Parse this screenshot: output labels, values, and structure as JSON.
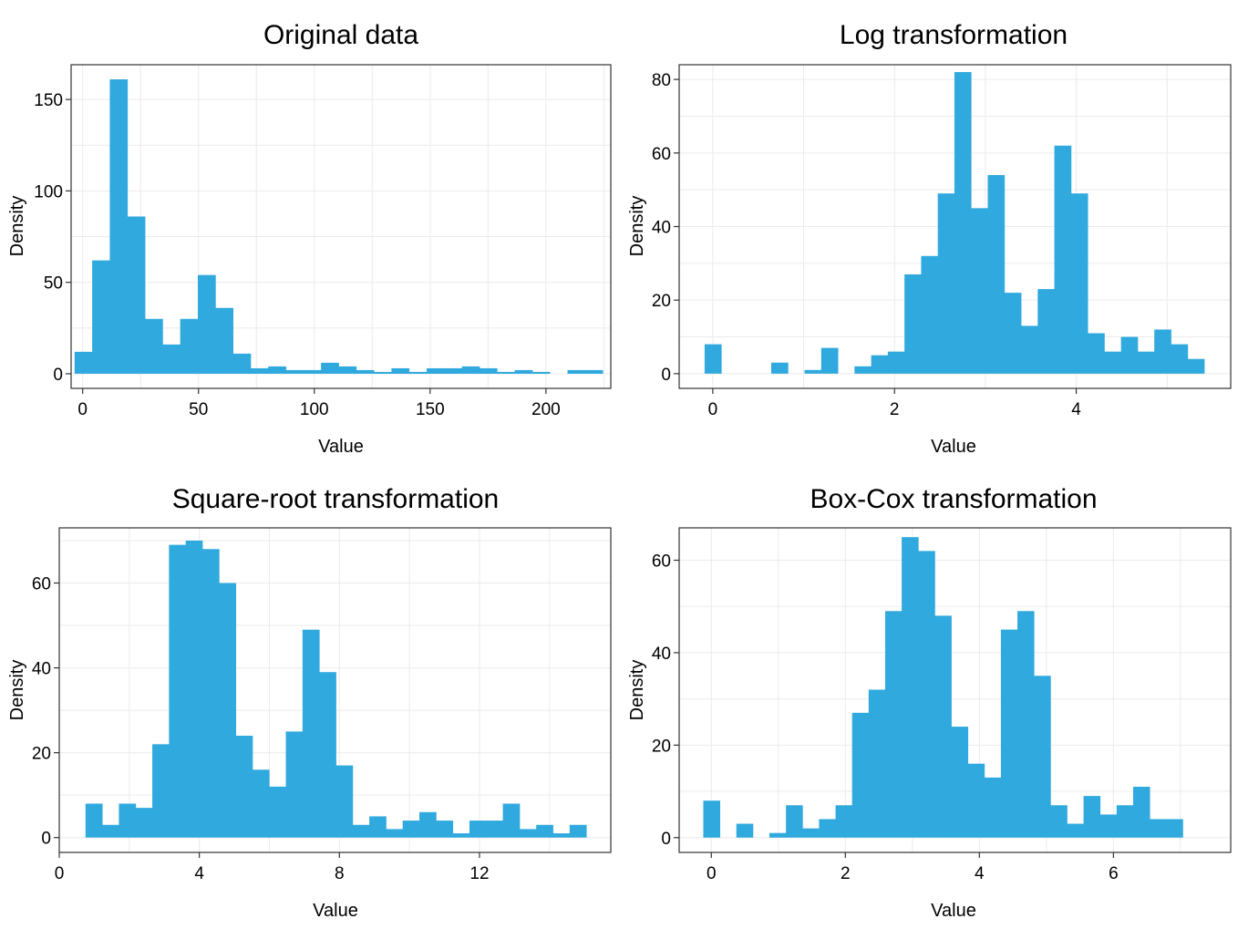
{
  "chart_data": [
    {
      "type": "bar",
      "title": "Original data",
      "xlabel": "Value",
      "ylabel": "Density",
      "xlim": [
        -5,
        228
      ],
      "ylim": [
        -8,
        169
      ],
      "xticks": [
        0,
        50,
        100,
        150,
        200
      ],
      "xtick_labels": [
        "0",
        "50",
        "100",
        "150",
        "200"
      ],
      "yticks": [
        0,
        50,
        100,
        150
      ],
      "ytick_labels": [
        "0",
        "50",
        "100",
        "150"
      ],
      "color": "#30A9DE",
      "bin_start": -3.5,
      "bin_width": 7.6,
      "values": [
        12,
        62,
        161,
        86,
        30,
        16,
        30,
        54,
        36,
        11,
        3,
        4,
        2,
        2,
        6,
        4,
        2,
        1,
        3,
        1,
        3,
        3,
        4,
        3,
        1,
        2,
        1,
        0,
        2,
        2
      ]
    },
    {
      "type": "bar",
      "title": "Log transformation",
      "xlabel": "Value",
      "ylabel": "Density",
      "xlim": [
        -0.37,
        5.7
      ],
      "ylim": [
        -4,
        84
      ],
      "xticks": [
        0,
        2,
        4
      ],
      "xtick_labels": [
        "0",
        "2",
        "4"
      ],
      "yticks": [
        0,
        20,
        40,
        60,
        80
      ],
      "ytick_labels": [
        "0",
        "20",
        "40",
        "60",
        "80"
      ],
      "color": "#30A9DE",
      "bin_start": -0.09,
      "bin_width": 0.1833,
      "values": [
        8,
        0,
        0,
        0,
        3,
        0,
        1,
        7,
        0,
        2,
        5,
        6,
        27,
        32,
        49,
        82,
        45,
        54,
        22,
        13,
        23,
        62,
        49,
        11,
        6,
        10,
        6,
        12,
        8,
        4
      ]
    },
    {
      "type": "bar",
      "title": "Square-root transformation",
      "xlabel": "Value",
      "ylabel": "Density",
      "xlim": [
        0,
        15.75
      ],
      "ylim": [
        -3.5,
        73
      ],
      "xticks": [
        0,
        4,
        8,
        12
      ],
      "xtick_labels": [
        "0",
        "4",
        "8",
        "12"
      ],
      "yticks": [
        0,
        20,
        40,
        60
      ],
      "ytick_labels": [
        "0",
        "20",
        "40",
        "60"
      ],
      "color": "#30A9DE",
      "bin_start": 0.75,
      "bin_width": 0.4767,
      "values": [
        8,
        3,
        8,
        7,
        22,
        69,
        70,
        68,
        60,
        24,
        16,
        12,
        25,
        49,
        39,
        17,
        3,
        5,
        2,
        4,
        6,
        4,
        1,
        4,
        4,
        8,
        2,
        3,
        1,
        3
      ]
    },
    {
      "type": "bar",
      "title": "Box-Cox transformation",
      "xlabel": "Value",
      "ylabel": "Density",
      "xlim": [
        -0.48,
        7.75
      ],
      "ylim": [
        -3.2,
        67
      ],
      "xticks": [
        0,
        2,
        4,
        6
      ],
      "xtick_labels": [
        "0",
        "2",
        "4",
        "6"
      ],
      "yticks": [
        0,
        20,
        40,
        60
      ],
      "ytick_labels": [
        "0",
        "20",
        "40",
        "60"
      ],
      "color": "#30A9DE",
      "bin_start": -0.12,
      "bin_width": 0.2467,
      "values": [
        8,
        0,
        3,
        0,
        1,
        7,
        2,
        4,
        7,
        27,
        32,
        49,
        65,
        62,
        48,
        24,
        16,
        13,
        45,
        49,
        35,
        7,
        3,
        9,
        5,
        7,
        11,
        4,
        4,
        0
      ]
    }
  ]
}
